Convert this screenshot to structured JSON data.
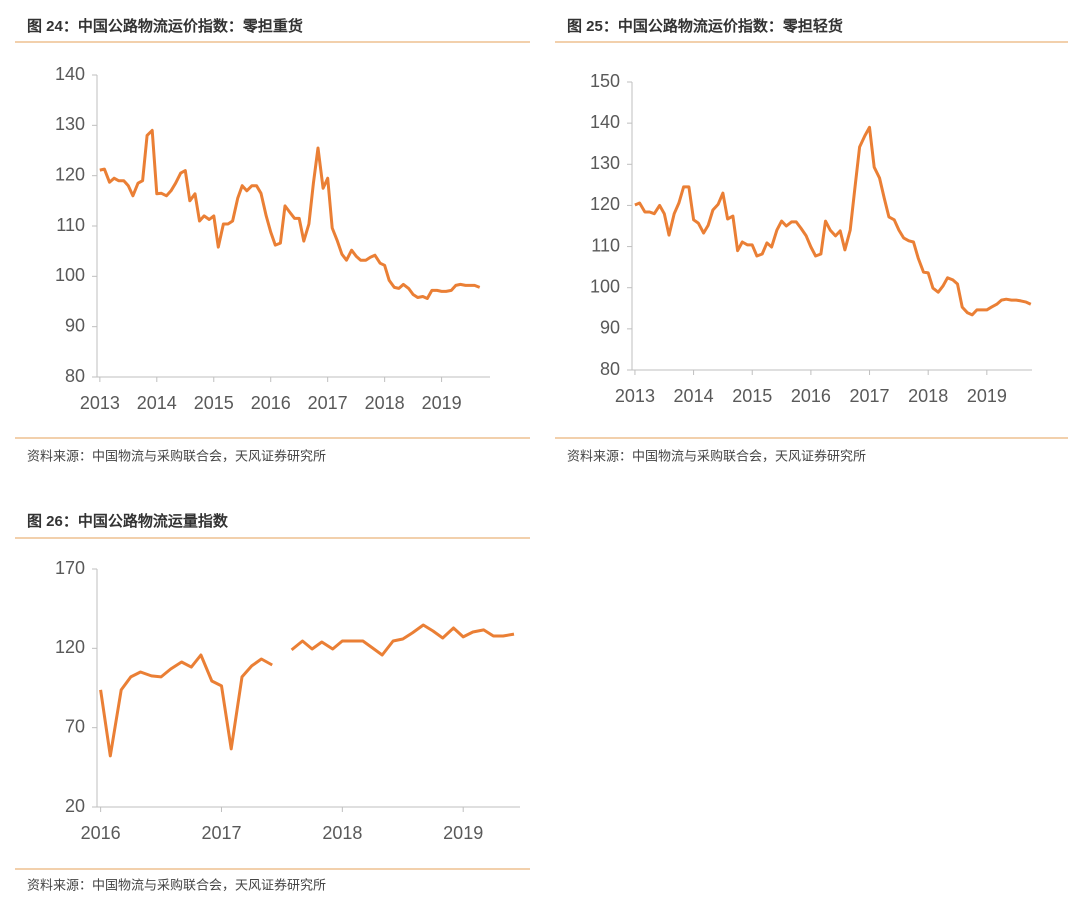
{
  "chart_data": [
    {
      "type": "line",
      "title": "图 24：中国公路物流运价指数：零担重货",
      "source": "资料来源：中国物流与采购联合会，天风证券研究所",
      "x": [
        2013.0,
        2013.08,
        2013.17,
        2013.25,
        2013.33,
        2013.42,
        2013.5,
        2013.58,
        2013.67,
        2013.75,
        2013.83,
        2013.92,
        2014.0,
        2014.08,
        2014.17,
        2014.25,
        2014.33,
        2014.42,
        2014.5,
        2014.58,
        2014.67,
        2014.75,
        2014.83,
        2014.92,
        2015.0,
        2015.08,
        2015.17,
        2015.25,
        2015.33,
        2015.42,
        2015.5,
        2015.58,
        2015.67,
        2015.75,
        2015.83,
        2015.92,
        2016.0,
        2016.08,
        2016.17,
        2016.25,
        2016.33,
        2016.42,
        2016.5,
        2016.58,
        2016.67,
        2016.75,
        2016.83,
        2016.92,
        2017.0,
        2017.08,
        2017.17,
        2017.25,
        2017.33,
        2017.42,
        2017.5,
        2017.58,
        2017.67,
        2017.75,
        2017.83,
        2017.92,
        2018.0,
        2018.08,
        2018.17,
        2018.25,
        2018.33,
        2018.42,
        2018.5,
        2018.58,
        2018.67,
        2018.75,
        2018.83,
        2018.92,
        2019.0,
        2019.08,
        2019.17,
        2019.25,
        2019.33,
        2019.42,
        2019.5,
        2019.58,
        2019.67
      ],
      "values": [
        121.1,
        121.3,
        118.7,
        119.5,
        119,
        119,
        118,
        116,
        118.5,
        119,
        128,
        129,
        116.4,
        116.5,
        116,
        117,
        118.5,
        120.5,
        121,
        115,
        116.4,
        111,
        112,
        111.3,
        112,
        105.8,
        110.4,
        110.4,
        111,
        115.5,
        118,
        117,
        118,
        118,
        116.5,
        112,
        108.8,
        106.2,
        106.6,
        114,
        112.8,
        111.5,
        111.5,
        107,
        110.4,
        118.5,
        125.5,
        117.5,
        119.5,
        109.6,
        107,
        104.4,
        103.2,
        105.2,
        104,
        103.2,
        103.2,
        103.8,
        104.2,
        102.6,
        102.2,
        99.2,
        97.8,
        97.6,
        98.4,
        97.6,
        96.4,
        95.8,
        96,
        95.6,
        97.2,
        97.2,
        97,
        97,
        97.2,
        98.2,
        98.4,
        98.2,
        98.2,
        98.2,
        97.8
      ],
      "color": "#ea7f35",
      "xlim": [
        2012.95,
        2019.85
      ],
      "xticks": [
        2013,
        2014,
        2015,
        2016,
        2017,
        2018,
        2019
      ],
      "ylim": [
        80,
        140
      ],
      "yticks": [
        80,
        90,
        100,
        110,
        120,
        130,
        140
      ]
    },
    {
      "type": "line",
      "title": "图 25：中国公路物流运价指数：零担轻货",
      "source": "资料来源：中国物流与采购联合会，天风证券研究所",
      "x": [
        2013.0,
        2013.08,
        2013.17,
        2013.25,
        2013.33,
        2013.42,
        2013.5,
        2013.58,
        2013.67,
        2013.75,
        2013.83,
        2013.92,
        2014.0,
        2014.08,
        2014.17,
        2014.25,
        2014.33,
        2014.42,
        2014.5,
        2014.58,
        2014.67,
        2014.75,
        2014.83,
        2014.92,
        2015.0,
        2015.08,
        2015.17,
        2015.25,
        2015.33,
        2015.42,
        2015.5,
        2015.58,
        2015.67,
        2015.75,
        2015.83,
        2015.92,
        2016.0,
        2016.08,
        2016.17,
        2016.25,
        2016.33,
        2016.42,
        2016.5,
        2016.58,
        2016.67,
        2016.75,
        2016.83,
        2016.92,
        2017.0,
        2017.08,
        2017.17,
        2017.25,
        2017.33,
        2017.42,
        2017.5,
        2017.58,
        2017.67,
        2017.75,
        2017.83,
        2017.92,
        2018.0,
        2018.08,
        2018.17,
        2018.25,
        2018.33,
        2018.42,
        2018.5,
        2018.58,
        2018.67,
        2018.75,
        2018.83,
        2018.92,
        2019.0,
        2019.08,
        2019.17,
        2019.25,
        2019.33,
        2019.42,
        2019.5,
        2019.58,
        2019.67,
        2019.75
      ],
      "values": [
        120.1,
        120.6,
        118.4,
        118.4,
        118,
        120,
        118,
        112.8,
        118,
        120.6,
        124.5,
        124.5,
        116.5,
        115.7,
        113.3,
        115.2,
        118.9,
        120.3,
        123,
        116.7,
        117.4,
        109,
        111.1,
        110.4,
        110.4,
        107.7,
        108.2,
        110.9,
        109.9,
        114,
        116.2,
        115,
        116,
        116,
        114.5,
        112.6,
        109.9,
        107.7,
        108.2,
        116.2,
        114,
        112.6,
        113.8,
        109.2,
        114,
        124.2,
        134.2,
        136.9,
        139,
        129.3,
        126.7,
        121.8,
        117.2,
        116.5,
        114,
        112.1,
        111.4,
        111.1,
        107.2,
        103.8,
        103.6,
        99.9,
        98.9,
        100.4,
        102.4,
        101.9,
        100.9,
        95.3,
        93.9,
        93.4,
        94.6,
        94.6,
        94.6,
        95.3,
        96,
        97,
        97.2,
        97,
        97,
        96.8,
        96.5,
        96
      ],
      "color": "#ea7f35",
      "xlim": [
        2012.95,
        2019.77
      ],
      "xticks": [
        2013,
        2014,
        2015,
        2016,
        2017,
        2018,
        2019
      ],
      "ylim": [
        80,
        150
      ],
      "yticks": [
        80,
        90,
        100,
        110,
        120,
        130,
        140,
        150
      ]
    },
    {
      "type": "line",
      "title": "图 26：中国公路物流运量指数",
      "source": "资料来源：中国物流与采购联合会，天风证券研究所",
      "x": [
        2016.0,
        2016.08,
        2016.17,
        2016.25,
        2016.33,
        2016.42,
        2016.5,
        2016.58,
        2016.67,
        2016.75,
        2016.83,
        2016.92,
        2017.0,
        2017.08,
        2017.17,
        2017.25,
        2017.33,
        2017.42,
        2017.5,
        2017.58,
        2017.67,
        2017.75,
        2017.83,
        2017.92,
        2018.0,
        2018.08,
        2018.17,
        2018.25,
        2018.33,
        2018.42,
        2018.5,
        2018.58,
        2018.67,
        2018.75,
        2018.83,
        2018.92,
        2019.0,
        2019.08,
        2019.17,
        2019.25,
        2019.33,
        2019.42
      ],
      "values": [
        93.8,
        52.2,
        93.8,
        102,
        105.1,
        102.6,
        102,
        107,
        111.4,
        108.2,
        115.8,
        99.4,
        96.3,
        56.6,
        102,
        108.9,
        113.3,
        109.5,
        null,
        119,
        124.6,
        119.6,
        124,
        119.6,
        124.6,
        124.6,
        124.6,
        120.2,
        115.8,
        124.6,
        125.9,
        129.7,
        134.7,
        130.9,
        126.5,
        132.8,
        127.2,
        130.3,
        131.6,
        127.8,
        127.8,
        129
      ],
      "color": "#ea7f35",
      "xlim": [
        2015.97,
        2019.47
      ],
      "xticks": [
        2016,
        2017,
        2018,
        2019
      ],
      "ylim": [
        20,
        170
      ],
      "yticks": [
        20,
        70,
        120,
        170
      ]
    }
  ]
}
